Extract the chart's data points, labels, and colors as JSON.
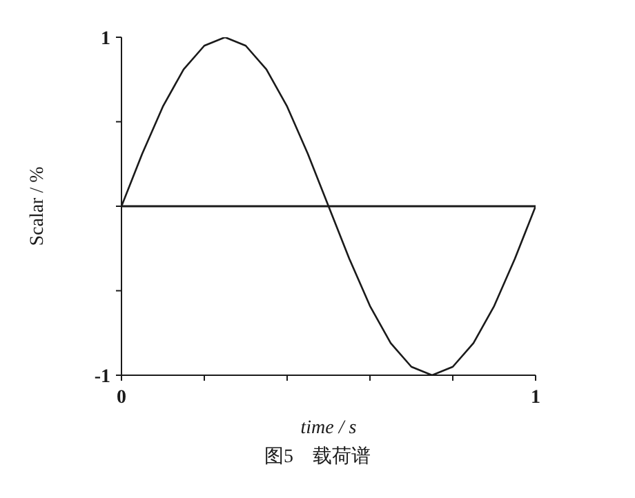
{
  "chart_data": {
    "type": "line",
    "title": "图5　载荷谱",
    "xlabel": "time / s",
    "ylabel": "Scalar / %",
    "x": [
      0,
      0.05,
      0.1,
      0.15,
      0.2,
      0.25,
      0.3,
      0.35,
      0.4,
      0.45,
      0.5,
      0.55,
      0.6,
      0.65,
      0.7,
      0.75,
      0.8,
      0.85,
      0.9,
      0.95,
      1
    ],
    "series": [
      {
        "color": "#1a1a1a",
        "values": [
          0,
          0.31,
          0.59,
          0.81,
          0.95,
          1,
          0.95,
          0.81,
          0.59,
          0.31,
          0,
          -0.31,
          -0.59,
          -0.81,
          -0.95,
          -1,
          -0.95,
          -0.81,
          -0.59,
          -0.31,
          0
        ]
      }
    ],
    "xlim": [
      0,
      1
    ],
    "ylim": [
      -1,
      1
    ],
    "xticks": [
      0,
      {
        "value": 0.2,
        "label": null
      },
      {
        "value": 0.4,
        "label": null
      },
      {
        "value": 0.6,
        "label": null
      },
      {
        "value": 0.8,
        "label": null
      },
      1
    ],
    "yticks": [
      -1,
      {
        "value": -0.5,
        "label": null
      },
      {
        "value": 0,
        "label": null
      },
      {
        "value": 0.5,
        "label": null
      },
      1
    ],
    "ref_lines": [
      {
        "axis": "y",
        "value": 0,
        "color": "#1a1a1a"
      }
    ],
    "grid": false,
    "legend": false,
    "marker": "none",
    "line_style": "solid"
  }
}
